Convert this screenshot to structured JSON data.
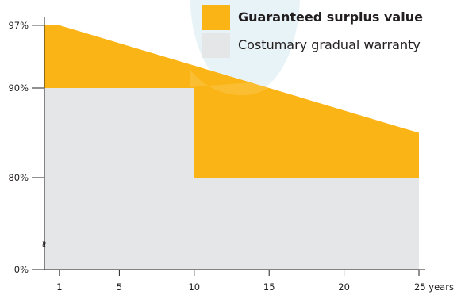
{
  "chart_data": {
    "type": "area",
    "title": "",
    "xlabel": "",
    "ylabel": "",
    "x_ticks": [
      "1",
      "5",
      "10",
      "15",
      "20",
      "25 years"
    ],
    "y_ticks": [
      "0%",
      "80%",
      "90%",
      "97%"
    ],
    "axis_break_symbol": "≈",
    "xlim": [
      0,
      25
    ],
    "ylim": [
      0,
      97
    ],
    "y_scale": "broken (0 to ~75 compressed)",
    "series": [
      {
        "name": "Guaranteed surplus value",
        "color": "#fbb415",
        "x": [
          0,
          1,
          25
        ],
        "y": [
          97,
          97,
          85
        ]
      },
      {
        "name": "Costumary gradual warranty",
        "color": "#e5e6e7",
        "x": [
          0,
          10,
          10,
          25
        ],
        "y": [
          90,
          90,
          80,
          80
        ]
      }
    ],
    "legend": {
      "position": "top-right",
      "items": [
        {
          "label": "Guaranteed surplus value",
          "color": "#fbb415",
          "bold": true
        },
        {
          "label": "Costumary gradual warranty",
          "color": "#e5e6e7",
          "bold": false
        }
      ]
    },
    "watermark_color": "#e8f3f8",
    "axis_color": "#231f20"
  }
}
